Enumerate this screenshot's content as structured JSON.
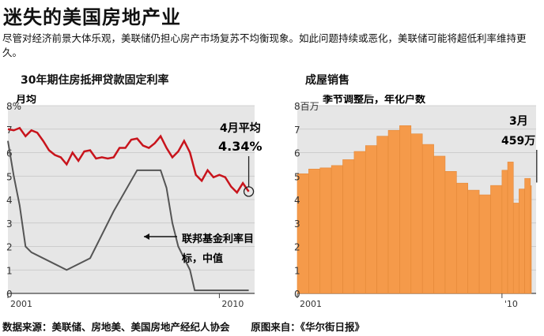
{
  "title": "迷失的美国房地产业",
  "subtitle": "尽管对经济前景大体乐观，美联储仍担心房产市场复苏不均衡现象。如此问题持续或恶化，美联储可能将超低利率维持更久。",
  "footer": {
    "data_source": "数据来源：美联储、房地美、美国房地产经纪人协会",
    "image_source": "原图来自：《华尔街日报》"
  },
  "colors": {
    "mortgage_line": "#c8141c",
    "fed_line": "#555555",
    "sales_area": "#f59a4a",
    "panel_bg": "#e6e6e6"
  },
  "chart_data": [
    {
      "type": "line",
      "title": "30年期住房抵押贷款固定利率",
      "unit_label": "月均",
      "y_ticks": [
        "8%",
        "7",
        "6",
        "5",
        "4",
        "3",
        "2",
        "1",
        "0"
      ],
      "x_ticks": [
        "2001",
        "2010"
      ],
      "ylim": [
        0,
        8
      ],
      "xlim": [
        2001,
        2011.5
      ],
      "grid": true,
      "series": [
        {
          "name": "30年期住房抵押贷款固定利率",
          "x": [
            2001.0,
            2001.25,
            2001.5,
            2001.75,
            2002.0,
            2002.25,
            2002.5,
            2002.75,
            2003.0,
            2003.25,
            2003.5,
            2003.75,
            2004.0,
            2004.25,
            2004.5,
            2004.75,
            2005.0,
            2005.25,
            2005.5,
            2005.75,
            2006.0,
            2006.25,
            2006.5,
            2006.75,
            2007.0,
            2007.25,
            2007.5,
            2007.75,
            2008.0,
            2008.25,
            2008.5,
            2008.75,
            2009.0,
            2009.25,
            2009.5,
            2009.75,
            2010.0,
            2010.25,
            2010.5,
            2010.75,
            2011.0,
            2011.25
          ],
          "values": [
            7.0,
            6.95,
            7.05,
            6.7,
            6.95,
            6.85,
            6.5,
            6.1,
            5.9,
            5.8,
            5.5,
            6.0,
            5.65,
            6.05,
            6.1,
            5.75,
            5.8,
            5.75,
            5.8,
            6.2,
            6.2,
            6.55,
            6.6,
            6.3,
            6.2,
            6.4,
            6.7,
            6.2,
            5.8,
            6.05,
            6.5,
            6.0,
            5.05,
            4.8,
            5.25,
            4.95,
            5.05,
            4.95,
            4.55,
            4.3,
            4.7,
            4.34
          ]
        },
        {
          "name": "联邦基金利率目标，中值",
          "x": [
            2001.0,
            2001.25,
            2001.5,
            2001.75,
            2002.0,
            2003.0,
            2003.5,
            2004.5,
            2005.5,
            2006.5,
            2007.5,
            2007.75,
            2008.0,
            2008.25,
            2008.75,
            2008.95,
            2011.25
          ],
          "values": [
            6.5,
            5.0,
            3.75,
            2.0,
            1.75,
            1.25,
            1.0,
            1.5,
            3.5,
            5.25,
            5.25,
            4.5,
            3.0,
            2.0,
            1.0,
            0.13,
            0.13
          ]
        }
      ],
      "annotations": [
        {
          "label": "4月平均",
          "value_label": "4.34%"
        },
        {
          "label": "联邦基金利率目",
          "label2": "标，中值"
        }
      ]
    },
    {
      "type": "bar",
      "title": "成屋销售",
      "unit_label": "百万",
      "subtitle": "季节调整后，年化户数",
      "y_ticks": [
        "8百万",
        "7",
        "6",
        "5",
        "4",
        "3",
        "2",
        "1",
        "0"
      ],
      "x_ticks": [
        "2001",
        "'10"
      ],
      "ylim": [
        0,
        8
      ],
      "xlim": [
        2001,
        2011.5
      ],
      "grid": true,
      "x": [
        2001.0,
        2001.5,
        2002.0,
        2002.5,
        2003.0,
        2003.5,
        2004.0,
        2004.5,
        2005.0,
        2005.5,
        2006.0,
        2006.5,
        2007.0,
        2007.5,
        2008.0,
        2008.5,
        2009.0,
        2009.5,
        2010.0,
        2010.25,
        2010.5,
        2010.75,
        2011.0,
        2011.25
      ],
      "values": [
        5.1,
        5.3,
        5.35,
        5.45,
        5.7,
        6.05,
        6.3,
        6.7,
        6.95,
        7.15,
        6.8,
        6.35,
        5.85,
        5.2,
        4.7,
        4.4,
        4.2,
        4.6,
        5.25,
        5.6,
        3.85,
        4.45,
        4.9,
        4.59
      ],
      "annotations": [
        {
          "label": "3月",
          "value_label": "459万"
        }
      ]
    }
  ]
}
